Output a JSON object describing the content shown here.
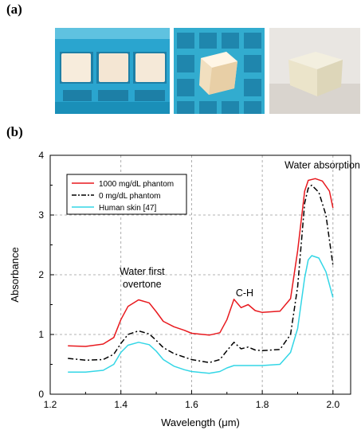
{
  "panels": {
    "a_label": "(a)",
    "b_label": "(b)"
  },
  "photos": [
    {
      "subject": "phantom-cubes-in-blue-tray"
    },
    {
      "subject": "single-phantom-cube-in-blue-tray"
    },
    {
      "subject": "phantom-cube-on-white-surface"
    }
  ],
  "colors": {
    "phantom_1000": "#e8191e",
    "phantom_0": "#000000",
    "human_skin": "#33d6e6",
    "tray_blue": "#2aa5cf",
    "phantom_cream": "#f6e9d6"
  },
  "chart_data": {
    "type": "line",
    "xlabel": "Wavelength (μm)",
    "ylabel": "Absorbance",
    "xlim": [
      1.2,
      2.05
    ],
    "ylim": [
      0,
      4
    ],
    "xticks": [
      "1.2",
      "1.4",
      "1.6",
      "1.8",
      "2.0"
    ],
    "yticks": [
      "0",
      "1",
      "2",
      "3",
      "4"
    ],
    "grid": true,
    "legend_position": "top-left",
    "series": [
      {
        "name": "1000 mg/dL phantom",
        "color": "#e8191e",
        "dash": "solid",
        "points": [
          [
            1.25,
            0.81
          ],
          [
            1.3,
            0.8
          ],
          [
            1.35,
            0.84
          ],
          [
            1.38,
            0.95
          ],
          [
            1.4,
            1.25
          ],
          [
            1.42,
            1.47
          ],
          [
            1.45,
            1.58
          ],
          [
            1.48,
            1.53
          ],
          [
            1.5,
            1.38
          ],
          [
            1.52,
            1.22
          ],
          [
            1.55,
            1.13
          ],
          [
            1.58,
            1.07
          ],
          [
            1.6,
            1.02
          ],
          [
            1.65,
            0.99
          ],
          [
            1.68,
            1.03
          ],
          [
            1.7,
            1.25
          ],
          [
            1.72,
            1.59
          ],
          [
            1.74,
            1.45
          ],
          [
            1.76,
            1.5
          ],
          [
            1.78,
            1.4
          ],
          [
            1.8,
            1.37
          ],
          [
            1.85,
            1.39
          ],
          [
            1.88,
            1.6
          ],
          [
            1.9,
            2.4
          ],
          [
            1.92,
            3.4
          ],
          [
            1.93,
            3.58
          ],
          [
            1.95,
            3.61
          ],
          [
            1.97,
            3.57
          ],
          [
            1.99,
            3.4
          ],
          [
            2.0,
            3.12
          ]
        ]
      },
      {
        "name": "0 mg/dL phantom",
        "color": "#000000",
        "dash": "dashdot",
        "points": [
          [
            1.25,
            0.6
          ],
          [
            1.3,
            0.57
          ],
          [
            1.35,
            0.58
          ],
          [
            1.38,
            0.67
          ],
          [
            1.4,
            0.85
          ],
          [
            1.42,
            1.0
          ],
          [
            1.45,
            1.06
          ],
          [
            1.48,
            1.01
          ],
          [
            1.5,
            0.9
          ],
          [
            1.52,
            0.78
          ],
          [
            1.55,
            0.68
          ],
          [
            1.58,
            0.62
          ],
          [
            1.6,
            0.58
          ],
          [
            1.65,
            0.53
          ],
          [
            1.68,
            0.58
          ],
          [
            1.7,
            0.73
          ],
          [
            1.72,
            0.87
          ],
          [
            1.74,
            0.76
          ],
          [
            1.76,
            0.79
          ],
          [
            1.78,
            0.74
          ],
          [
            1.8,
            0.73
          ],
          [
            1.85,
            0.75
          ],
          [
            1.88,
            1.0
          ],
          [
            1.9,
            1.8
          ],
          [
            1.92,
            3.2
          ],
          [
            1.93,
            3.45
          ],
          [
            1.94,
            3.5
          ],
          [
            1.96,
            3.38
          ],
          [
            1.98,
            3.0
          ],
          [
            2.0,
            2.16
          ]
        ]
      },
      {
        "name": "Human skin",
        "legend_ref": "[47]",
        "color": "#33d6e6",
        "dash": "solid",
        "points": [
          [
            1.25,
            0.37
          ],
          [
            1.3,
            0.37
          ],
          [
            1.35,
            0.4
          ],
          [
            1.38,
            0.5
          ],
          [
            1.4,
            0.7
          ],
          [
            1.42,
            0.82
          ],
          [
            1.45,
            0.87
          ],
          [
            1.48,
            0.83
          ],
          [
            1.5,
            0.72
          ],
          [
            1.52,
            0.58
          ],
          [
            1.55,
            0.47
          ],
          [
            1.58,
            0.41
          ],
          [
            1.6,
            0.38
          ],
          [
            1.65,
            0.35
          ],
          [
            1.68,
            0.38
          ],
          [
            1.7,
            0.44
          ],
          [
            1.72,
            0.48
          ],
          [
            1.75,
            0.48
          ],
          [
            1.78,
            0.48
          ],
          [
            1.8,
            0.48
          ],
          [
            1.85,
            0.5
          ],
          [
            1.88,
            0.7
          ],
          [
            1.9,
            1.1
          ],
          [
            1.92,
            1.95
          ],
          [
            1.93,
            2.25
          ],
          [
            1.94,
            2.32
          ],
          [
            1.96,
            2.28
          ],
          [
            1.98,
            2.05
          ],
          [
            2.0,
            1.62
          ]
        ]
      }
    ],
    "annotations": [
      {
        "text": "Water absorption",
        "x": 1.97,
        "y": 3.78
      },
      {
        "text": "Water first",
        "x": 1.46,
        "y": 2.0
      },
      {
        "text": "overtone",
        "x": 1.46,
        "y": 1.79
      },
      {
        "text": "C-H",
        "x": 1.75,
        "y": 1.64
      }
    ]
  }
}
